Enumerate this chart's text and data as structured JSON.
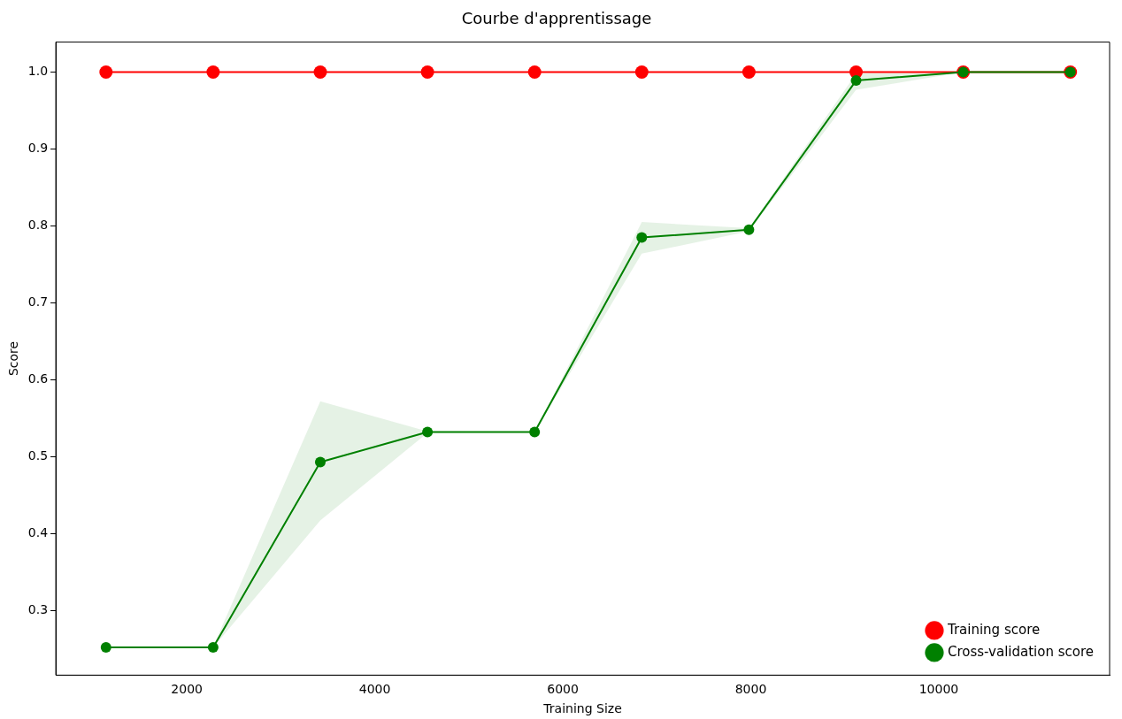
{
  "chart_data": {
    "type": "line",
    "title": "Courbe d'apprentissage",
    "xlabel": "Training Size",
    "ylabel": "Score",
    "x": [
      1140,
      2280,
      3420,
      4560,
      5700,
      6840,
      7980,
      9120,
      10260,
      11400
    ],
    "series": [
      {
        "name": "Training score",
        "color": "#ff0000",
        "values": [
          1.0,
          1.0,
          1.0,
          1.0,
          1.0,
          1.0,
          1.0,
          1.0,
          1.0,
          1.0
        ]
      },
      {
        "name": "Cross-validation score",
        "color": "#008000",
        "values": [
          0.252,
          0.252,
          0.493,
          0.532,
          0.532,
          0.785,
          0.795,
          0.989,
          1.0,
          1.0
        ],
        "lower": [
          0.252,
          0.252,
          0.417,
          0.531,
          0.532,
          0.764,
          0.793,
          0.977,
          1.0,
          1.0
        ],
        "upper": [
          0.252,
          0.253,
          0.572,
          0.533,
          0.532,
          0.805,
          0.797,
          0.998,
          1.0,
          1.0
        ]
      }
    ],
    "xlim": [
      606,
      11817
    ],
    "xticks": [
      2000,
      4000,
      6000,
      8000,
      10000
    ],
    "ylim": [
      0.216,
      1.039
    ],
    "yticks": [
      0.3,
      0.4,
      0.5,
      0.6,
      0.7,
      0.8,
      0.9,
      {
        "value": 1,
        "label": "1.0"
      }
    ],
    "grid": false,
    "legend": "bottom right",
    "marker": "circle",
    "line_style": "solid"
  }
}
